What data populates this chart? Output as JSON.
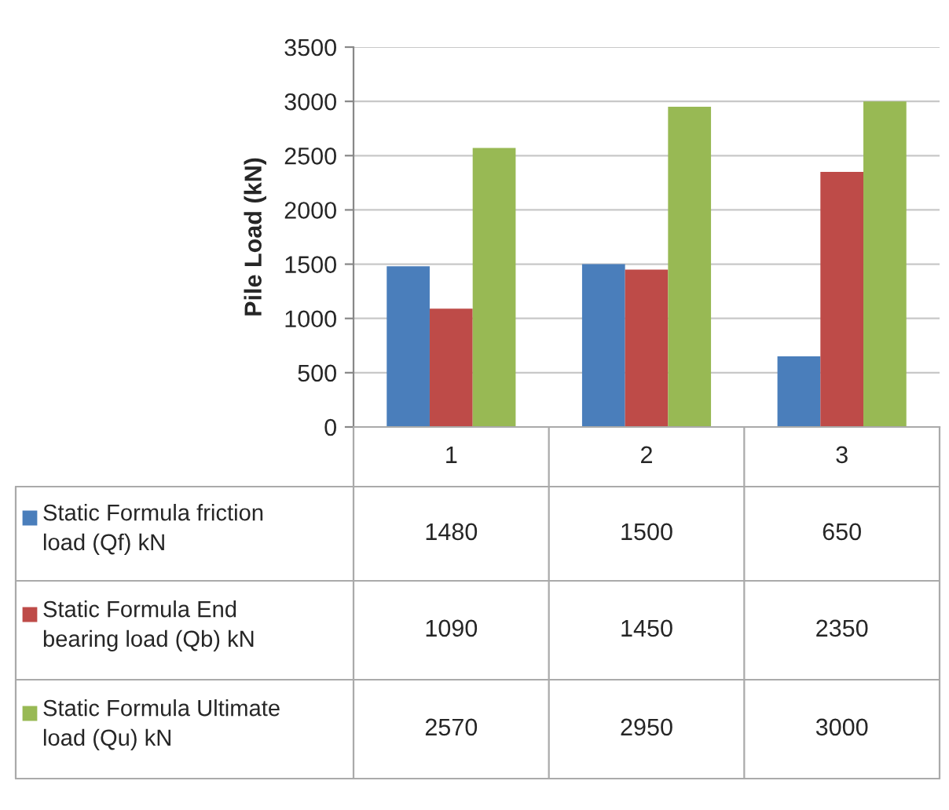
{
  "chart_data": {
    "type": "bar",
    "ylabel": "Pile Load (kN)",
    "categories": [
      "1",
      "2",
      "3"
    ],
    "series": [
      {
        "name": "Static Formula friction load (Qf) kN",
        "color": "#4a7ebb",
        "values": [
          1480,
          1500,
          650
        ]
      },
      {
        "name": "Static Formula End bearing load (Qb) kN",
        "color": "#be4b48",
        "values": [
          1090,
          1450,
          2350
        ]
      },
      {
        "name": "Static Formula Ultimate load (Qu) kN",
        "color": "#98b954",
        "values": [
          2570,
          2950,
          3000
        ]
      }
    ],
    "ylim": [
      0,
      3500
    ],
    "yticks": [
      0,
      500,
      1000,
      1500,
      2000,
      2500,
      3000,
      3500
    ],
    "grid": "y",
    "data_labels": true,
    "legend": "bottom left"
  }
}
